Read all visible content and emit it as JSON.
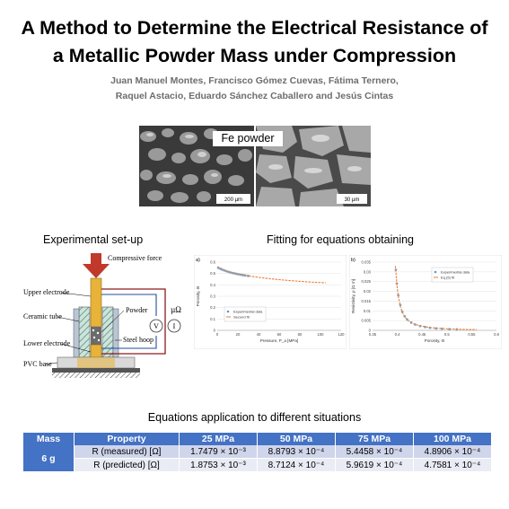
{
  "title_line1": "A Method to Determine the Electrical Resistance of",
  "title_line2": "a Metallic Powder Mass under Compression",
  "authors_line1": "Juan Manuel Montes, Francisco Gómez Cuevas, Fátima Ternero,",
  "authors_line2": "Raquel Astacio, Eduardo Sánchez Caballero and Jesús Cintas",
  "micrograph": {
    "label": "Fe powder",
    "scale_left": "200 µm",
    "scale_right": "30 µm"
  },
  "setup": {
    "heading": "Experimental set-up",
    "labels": {
      "force": "Compressive force",
      "upper": "Upper electrode",
      "ceramic": "Ceramic tube",
      "powder": "Powder",
      "lower": "Lower electrode",
      "steel": "Steel hoop",
      "pvc": "PVC base",
      "voltmeter": "V",
      "ammeter": "I",
      "ohm": "µΩ"
    }
  },
  "fitting": {
    "heading": "Fitting for equations obtaining"
  },
  "chart_data": [
    {
      "type": "scatter",
      "panel": "a)",
      "xlabel": "Pressure, P_a [MPa]",
      "ylabel": "Porosity, Θ",
      "xlim": [
        0,
        120
      ],
      "ylim": [
        0,
        0.6
      ],
      "xticks": [
        0,
        20,
        40,
        60,
        80,
        100,
        120
      ],
      "yticks": [
        0,
        0.1,
        0.2,
        0.3,
        0.4,
        0.5,
        0.6
      ],
      "legend_position": "bottom-left",
      "series": [
        {
          "name": "Experimental data",
          "color": "#5b9bd5",
          "x": [
            1,
            3,
            5,
            7,
            9,
            11,
            13,
            15,
            17,
            19,
            21,
            23,
            25,
            27,
            30
          ],
          "y": [
            0.55,
            0.541,
            0.533,
            0.526,
            0.52,
            0.514,
            0.509,
            0.504,
            0.5,
            0.496,
            0.492,
            0.489,
            0.486,
            0.483,
            0.479
          ]
        },
        {
          "name": "Second fit",
          "color": "#ed7d31",
          "x": [
            0,
            10,
            20,
            30,
            40,
            50,
            60,
            70,
            80,
            90,
            100,
            105
          ],
          "y": [
            0.56,
            0.517,
            0.496,
            0.479,
            0.466,
            0.455,
            0.446,
            0.438,
            0.431,
            0.425,
            0.42,
            0.418
          ]
        }
      ]
    },
    {
      "type": "scatter",
      "panel": "b)",
      "xlabel": "Porosity, Θ",
      "ylabel": "Resistivity, ρ [Ω m]",
      "xlim": [
        0.35,
        0.6
      ],
      "ylim": [
        0,
        0.035
      ],
      "xticks": [
        0.35,
        0.4,
        0.45,
        0.5,
        0.55,
        0.6
      ],
      "yticks": [
        0,
        0.005,
        0.01,
        0.015,
        0.02,
        0.025,
        0.03,
        0.035
      ],
      "legend_position": "top-right",
      "series": [
        {
          "name": "Experimental data",
          "color": "#5b9bd5",
          "x": [
            0.397,
            0.399,
            0.402,
            0.406,
            0.41,
            0.415,
            0.42,
            0.428,
            0.436,
            0.446,
            0.456,
            0.466,
            0.478,
            0.49,
            0.505,
            0.52
          ],
          "y": [
            0.031,
            0.024,
            0.018,
            0.013,
            0.0095,
            0.0072,
            0.0055,
            0.004,
            0.003,
            0.0022,
            0.0017,
            0.0013,
            0.001,
            0.0008,
            0.0006,
            0.0005
          ]
        },
        {
          "name": "Eq.(5) fit",
          "color": "#ed7d31",
          "x": [
            0.396,
            0.398,
            0.4,
            0.403,
            0.407,
            0.412,
            0.418,
            0.425,
            0.435,
            0.45,
            0.47,
            0.5,
            0.53,
            0.56
          ],
          "y": [
            0.033,
            0.027,
            0.021,
            0.016,
            0.0115,
            0.0082,
            0.006,
            0.0044,
            0.0031,
            0.0021,
            0.0013,
            0.0008,
            0.0005,
            0.0004
          ]
        }
      ]
    }
  ],
  "equations": {
    "heading": "Equations application to different situations",
    "headers": [
      "Mass",
      "Property",
      "25 MPa",
      "50 MPa",
      "75 MPa",
      "100 MPa"
    ],
    "mass": "6 g",
    "rows": [
      {
        "property": "R (measured) [Ω]",
        "values": [
          "1.7479 × 10⁻³",
          "8.8793 × 10⁻⁴",
          "5.4458 × 10⁻⁴",
          "4.8906 × 10⁻⁴"
        ]
      },
      {
        "property": "R (predicted) [Ω]",
        "values": [
          "1.8753 × 10⁻³",
          "8.7124 × 10⁻⁴",
          "5.9619 × 10⁻⁴",
          "4.7581 × 10⁻⁴"
        ]
      }
    ]
  },
  "colors": {
    "table_header": "#4472c4",
    "table_row1": "#cfd5ea",
    "table_row2": "#e9ebf5",
    "force_arrow": "#c0392b",
    "electrode": "#e8b339"
  }
}
